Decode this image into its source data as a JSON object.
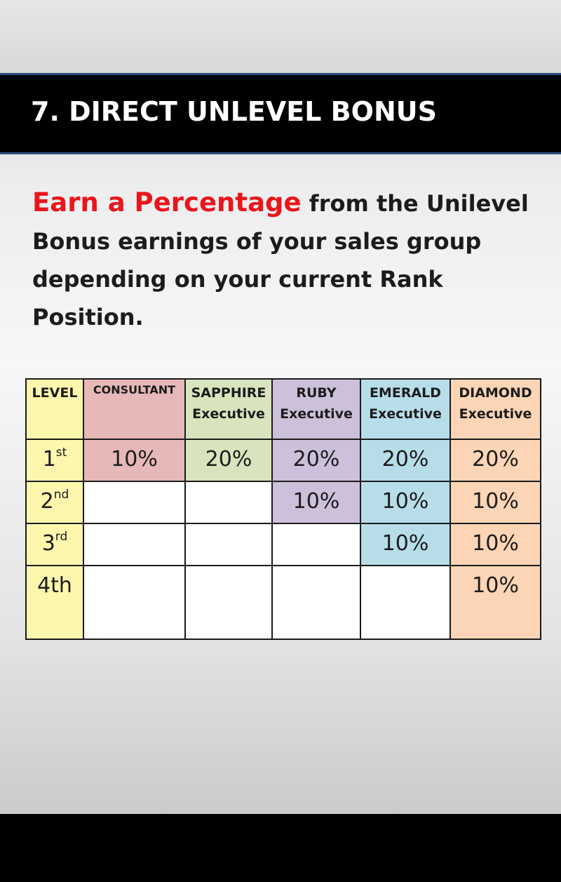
{
  "header": {
    "title": "7. DIRECT UNLEVEL BONUS"
  },
  "intro": {
    "highlight": "Earn a Percentage",
    "text": " from the Unilevel Bonus earnings of your sales group depending on your current Rank Position."
  },
  "table": {
    "columns": [
      {
        "line1": "LEVEL",
        "line2": ""
      },
      {
        "line1": "CONSULTANT",
        "line2": ""
      },
      {
        "line1": "SAPPHIRE",
        "line2": "Executive"
      },
      {
        "line1": "RUBY",
        "line2": "Executive"
      },
      {
        "line1": "EMERALD",
        "line2": "Executive"
      },
      {
        "line1": "DIAMOND",
        "line2": "Executive"
      }
    ],
    "rows": [
      {
        "level": "1",
        "suffix": "st",
        "values": [
          "10%",
          "20%",
          "20%",
          "20%",
          "20%"
        ]
      },
      {
        "level": "2",
        "suffix": "nd",
        "values": [
          "",
          "",
          "10%",
          "10%",
          "10%"
        ]
      },
      {
        "level": "3",
        "suffix": "rd",
        "values": [
          "",
          "",
          "",
          "10%",
          "10%"
        ]
      },
      {
        "level": "4th",
        "suffix": "",
        "values": [
          "",
          "",
          "",
          "",
          "10%"
        ]
      }
    ]
  },
  "colors": {
    "title_bar": "#000000",
    "highlight": "#e8161c",
    "level": "#fdf6ad",
    "consultant": "#e6b8b7",
    "sapphire": "#d7e4bd",
    "ruby": "#ccc0da",
    "emerald": "#b7dde8",
    "diamond": "#fbd5b5"
  }
}
